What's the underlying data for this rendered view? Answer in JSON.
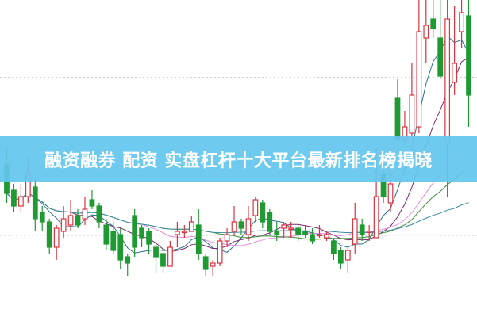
{
  "headline": "融资融券 配资 实盘杠杆十大平台最新排名榜揭晓",
  "chart_data": {
    "type": "candlestick",
    "ylim": [
      0,
      100
    ],
    "grid": "dotted horizontal lines",
    "reference_levels": [
      75.5,
      25.8
    ],
    "colors": {
      "up": "#d9343f",
      "down": "#1f9a33",
      "ma": [
        "#2e6f8e",
        "#7a2c6e",
        "#e58ce0",
        "#3c8c3c",
        "#3b8ea0"
      ]
    },
    "moving_average_periods": [
      5,
      10,
      20,
      30,
      60
    ],
    "candles": [
      [
        48,
        39,
        54,
        36
      ],
      [
        40,
        35,
        42,
        33
      ],
      [
        35,
        38,
        42,
        33
      ],
      [
        38,
        45,
        50,
        36
      ],
      [
        41,
        31,
        44,
        27
      ],
      [
        33,
        30,
        35,
        27
      ],
      [
        30,
        22,
        31,
        20
      ],
      [
        22,
        28,
        29,
        18
      ],
      [
        27,
        31,
        35,
        25
      ],
      [
        29,
        32,
        37,
        27
      ],
      [
        32,
        29,
        34,
        28
      ],
      [
        31,
        34,
        38,
        29
      ],
      [
        37,
        35,
        40,
        34
      ],
      [
        35,
        30,
        36,
        28
      ],
      [
        29,
        23,
        31,
        21
      ],
      [
        27,
        21,
        30,
        20
      ],
      [
        26,
        18,
        28,
        15
      ],
      [
        19,
        17,
        20,
        13
      ],
      [
        32,
        22,
        34,
        19
      ],
      [
        28,
        25,
        29,
        22
      ],
      [
        27,
        23,
        28,
        20
      ],
      [
        22,
        19,
        24,
        14
      ],
      [
        20,
        16,
        22,
        14
      ],
      [
        16,
        22,
        24,
        16
      ],
      [
        26,
        27,
        30,
        22
      ],
      [
        27,
        27,
        29,
        25
      ],
      [
        27,
        30,
        32,
        27
      ],
      [
        29,
        20,
        34,
        18
      ],
      [
        19,
        15,
        20,
        13
      ],
      [
        16,
        17,
        18,
        13
      ],
      [
        17,
        24,
        25,
        16
      ],
      [
        24,
        26,
        28,
        22
      ],
      [
        27,
        30,
        35,
        26
      ],
      [
        30,
        28,
        31,
        26
      ],
      [
        26,
        31,
        35,
        24
      ],
      [
        32,
        37,
        38,
        30
      ],
      [
        36,
        30,
        37,
        28
      ],
      [
        33,
        27,
        34,
        26
      ],
      [
        27,
        26,
        30,
        24
      ],
      [
        28,
        29,
        30,
        25
      ],
      [
        28,
        28,
        30,
        25
      ],
      [
        28,
        26,
        29,
        24
      ],
      [
        27,
        26,
        29,
        25
      ],
      [
        26,
        24,
        28,
        23
      ],
      [
        26,
        26,
        29,
        25
      ],
      [
        25,
        26,
        27,
        24
      ],
      [
        24,
        20,
        25,
        18
      ],
      [
        21,
        17,
        22,
        15
      ],
      [
        18,
        21,
        22,
        14
      ],
      [
        23,
        31,
        36,
        20
      ],
      [
        29,
        26,
        31,
        24
      ],
      [
        27,
        27,
        29,
        24
      ],
      [
        25,
        38,
        53,
        25
      ],
      [
        45,
        38,
        47,
        36
      ],
      [
        36,
        42,
        48,
        33
      ],
      [
        69,
        56,
        75,
        52
      ],
      [
        56,
        60,
        65,
        55
      ],
      [
        58,
        70,
        80,
        56
      ],
      [
        60,
        90,
        100,
        58
      ],
      [
        88,
        92,
        100,
        80
      ],
      [
        94,
        91,
        100,
        88
      ],
      [
        88,
        76,
        100,
        75
      ],
      [
        55,
        94,
        100,
        38
      ],
      [
        74,
        80,
        98,
        70
      ],
      [
        90,
        96,
        100,
        85
      ],
      [
        95,
        70,
        100,
        60
      ]
    ]
  }
}
